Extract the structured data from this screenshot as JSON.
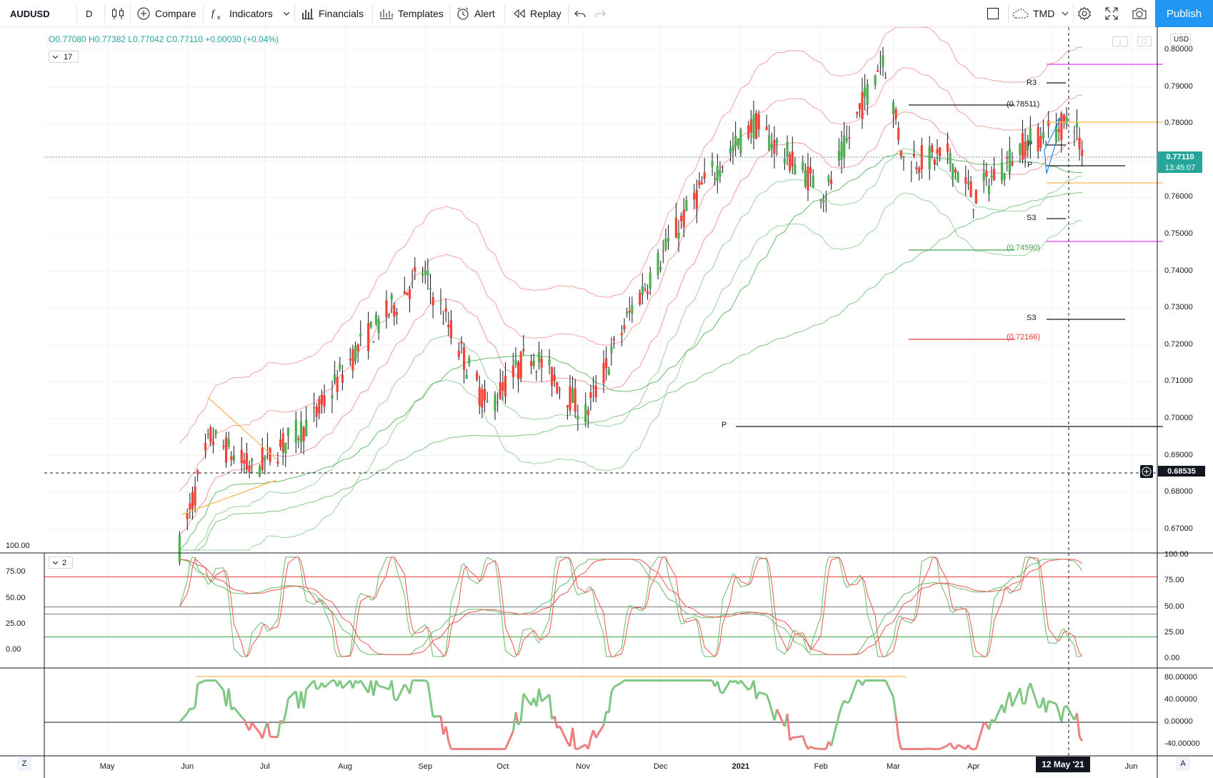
{
  "toolbar": {
    "symbol": "AUDUSD",
    "interval": "D",
    "compare": "Compare",
    "indicators": "Indicators",
    "financials": "Financials",
    "templates": "Templates",
    "alert": "Alert",
    "replay": "Replay",
    "layout_name": "TMD",
    "publish": "Publish",
    "icons": [
      "candles-icon",
      "plus-circle-icon",
      "fx-icon",
      "chevron-down-icon",
      "financials-icon",
      "templates-icon",
      "alarm-icon",
      "replay-icon",
      "undo-icon",
      "redo-icon",
      "square-icon",
      "cloud-icon",
      "gear-icon",
      "fullscreen-icon",
      "camera-icon"
    ]
  },
  "legend": {
    "ohlc": "O0.77080 H0.77382 L0.77042 C0.77110 +0.00030 (+0.04%)",
    "main_ind_count": "17",
    "stoch_ind_count": "2"
  },
  "currency": "USD",
  "price_axis": {
    "labels": [
      "0.80000",
      "0.79000",
      "0.78000",
      "0.77000",
      "0.76000",
      "0.75000",
      "0.74000",
      "0.73000",
      "0.72000",
      "0.71000",
      "0.70000",
      "0.69000",
      "0.68000",
      "0.67000"
    ],
    "last_price": "0.77110",
    "countdown": "13:45:07",
    "crosshair_price": "0.68535"
  },
  "stoch_axis": {
    "right_labels": [
      "100.00",
      "75.00",
      "50.00",
      "25.00",
      "0.00"
    ],
    "left_labels": [
      "100.00",
      "75.00",
      "50.00",
      "25.00",
      "0.00"
    ]
  },
  "osc_axis": {
    "labels": [
      "80.00000",
      "40.00000",
      "0.00000",
      "-40.00000"
    ]
  },
  "time_axis": {
    "labels": [
      "May",
      "Jun",
      "Jul",
      "Aug",
      "Sep",
      "Oct",
      "Nov",
      "Dec",
      "2021",
      "Feb",
      "Mar",
      "Apr",
      "M",
      "Jun"
    ],
    "crosshair_date": "12 May '21",
    "left_btn": "Z",
    "right_btn": "A"
  },
  "levels": {
    "r3": "R3",
    "p_upper": "P",
    "p_lower": "P",
    "s3_upper": "S3",
    "s3_lower": "S3",
    "p_long": "P",
    "fib_7851": "(0.78511)",
    "fib_7459": "(0.74590)",
    "fib_7217": "(0.72166)"
  },
  "colors": {
    "up": "#4caf50",
    "down": "#f44336",
    "accent": "#2196f3",
    "last_price_bg": "#26a69a",
    "band_red": "#f4a3a0",
    "band_green": "#9bd29d"
  },
  "chart_data": {
    "type": "candlestick",
    "symbol": "AUDUSD",
    "interval": "D",
    "ylim": [
      0.665,
      0.806
    ],
    "approx_close_path": [
      {
        "x": "2020-05-29",
        "close": 0.665
      },
      {
        "x": "2020-06-10",
        "close": 0.695
      },
      {
        "x": "2020-06-26",
        "close": 0.686
      },
      {
        "x": "2020-07-20",
        "close": 0.7
      },
      {
        "x": "2020-08-05",
        "close": 0.718
      },
      {
        "x": "2020-08-31",
        "close": 0.74
      },
      {
        "x": "2020-09-25",
        "close": 0.703
      },
      {
        "x": "2020-10-12",
        "close": 0.718
      },
      {
        "x": "2020-11-02",
        "close": 0.701
      },
      {
        "x": "2020-11-20",
        "close": 0.73
      },
      {
        "x": "2020-12-17",
        "close": 0.763
      },
      {
        "x": "2021-01-06",
        "close": 0.78
      },
      {
        "x": "2021-02-03",
        "close": 0.761
      },
      {
        "x": "2021-02-25",
        "close": 0.799
      },
      {
        "x": "2021-03-05",
        "close": 0.77
      },
      {
        "x": "2021-03-22",
        "close": 0.771
      },
      {
        "x": "2021-04-01",
        "close": 0.76
      },
      {
        "x": "2021-04-20",
        "close": 0.774
      },
      {
        "x": "2021-05-10",
        "close": 0.781
      },
      {
        "x": "2021-05-13",
        "close": 0.7711
      }
    ]
  }
}
